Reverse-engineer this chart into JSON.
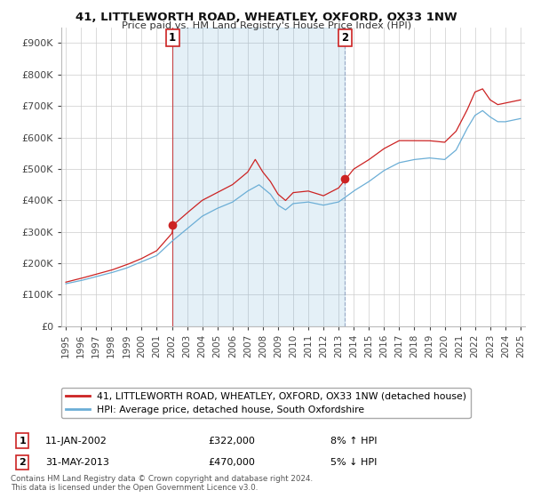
{
  "title": "41, LITTLEWORTH ROAD, WHEATLEY, OXFORD, OX33 1NW",
  "subtitle": "Price paid vs. HM Land Registry's House Price Index (HPI)",
  "ylabel_ticks": [
    "£0",
    "£100K",
    "£200K",
    "£300K",
    "£400K",
    "£500K",
    "£600K",
    "£700K",
    "£800K",
    "£900K"
  ],
  "ytick_vals": [
    0,
    100000,
    200000,
    300000,
    400000,
    500000,
    600000,
    700000,
    800000,
    900000
  ],
  "ylim": [
    0,
    950000
  ],
  "legend_line1": "41, LITTLEWORTH ROAD, WHEATLEY, OXFORD, OX33 1NW (detached house)",
  "legend_line2": "HPI: Average price, detached house, South Oxfordshire",
  "annotation1_date": "11-JAN-2002",
  "annotation1_price": "£322,000",
  "annotation1_hpi": "8% ↑ HPI",
  "annotation2_date": "31-MAY-2013",
  "annotation2_price": "£470,000",
  "annotation2_hpi": "5% ↓ HPI",
  "footer": "Contains HM Land Registry data © Crown copyright and database right 2024.\nThis data is licensed under the Open Government Licence v3.0.",
  "line_color_red": "#cc2222",
  "line_color_blue": "#6baed6",
  "fill_color_blue": "#ddeeff",
  "sale1_x": 2002.04,
  "sale2_x": 2013.42,
  "sale1_y": 322000,
  "sale2_y": 470000,
  "background_color": "#ffffff",
  "grid_color": "#cccccc",
  "xlim_left": 1994.7,
  "xlim_right": 2025.3
}
